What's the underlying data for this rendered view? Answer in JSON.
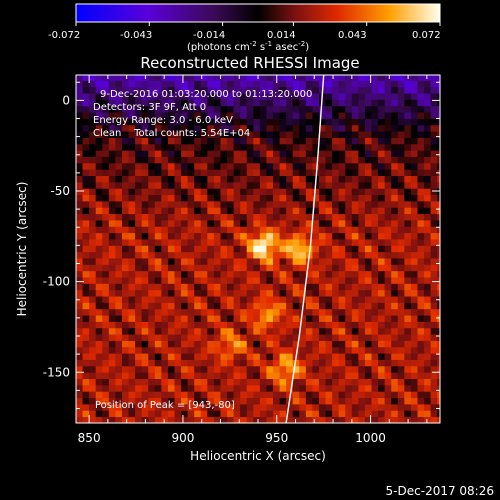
{
  "chart_data": {
    "type": "heatmap",
    "title": "Reconstructed RHESSI Image",
    "xlabel": "Heliocentric X (arcsec)",
    "ylabel": "Heliocentric Y (arcsec)",
    "xlim": [
      843,
      1037
    ],
    "ylim": [
      -178,
      14
    ],
    "x_ticks": [
      850,
      900,
      950,
      1000
    ],
    "y_ticks": [
      0,
      -50,
      -100,
      -150
    ],
    "colorbar": {
      "range": [
        -0.072,
        0.072
      ],
      "ticks": [
        "-0.072",
        "-0.043",
        "-0.014",
        "0.014",
        "0.043",
        "0.072"
      ],
      "label": "(photons cm",
      "label_sup1": "-2",
      "label_mid": " s",
      "label_sup2": "-1",
      "label_end": " asec",
      "label_sup3": "-2",
      "label_close": ")"
    },
    "annotations": [
      "9-Dec-2016 01:03:20.000 to 01:13:20.000",
      "Detectors: 3F 9F, Att 0",
      "Energy Range: 3.0 - 6.0 keV",
      "Clean    Total counts: 5.54E+04"
    ],
    "peak_label": "Position of Peak = [943,-80]",
    "peak": [
      943,
      -80
    ],
    "bright_sources": [
      {
        "x": 943,
        "y": -80,
        "value": 0.072
      },
      {
        "x": 962,
        "y": -82,
        "value": 0.06
      },
      {
        "x": 955,
        "y": -148,
        "value": 0.055
      },
      {
        "x": 945,
        "y": -118,
        "value": 0.05
      },
      {
        "x": 925,
        "y": -135,
        "value": 0.045
      }
    ],
    "limb_curve": [
      [
        975,
        14
      ],
      [
        972,
        -30
      ],
      [
        968,
        -80
      ],
      [
        962,
        -130
      ],
      [
        955,
        -178
      ]
    ],
    "grid": false
  },
  "footer": {
    "timestamp": "5-Dec-2017 08:26"
  }
}
